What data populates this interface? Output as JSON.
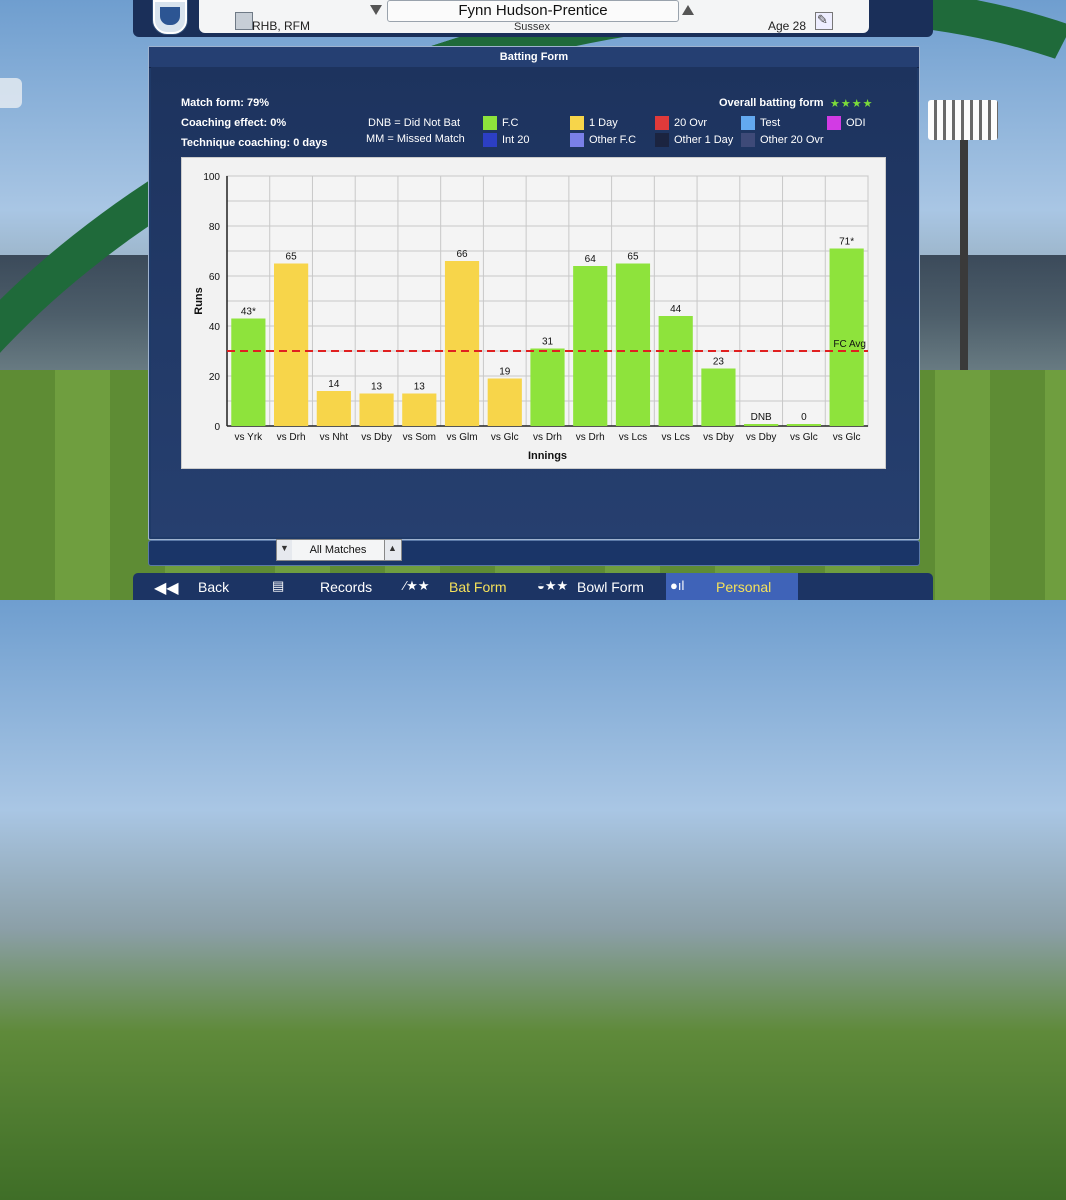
{
  "header": {
    "player_name": "Fynn Hudson-Prentice",
    "club": "Sussex",
    "role": "RHB, RFM",
    "age": "Age 28"
  },
  "panel": {
    "title": "Batting Form",
    "match_form": "Match form: 79%",
    "coaching_effect": "Coaching effect: 0%",
    "technique_coaching": "Technique coaching: 0 days",
    "overall_form_label": "Overall batting form",
    "overall_form_stars": "★★★★",
    "dnb_note": "DNB = Did Not Bat",
    "mm_note": "MM = Missed Match",
    "legend": [
      {
        "label": "F.C",
        "color": "#8ee33c"
      },
      {
        "label": "1 Day",
        "color": "#f7d54a"
      },
      {
        "label": "20 Ovr",
        "color": "#e03a3a"
      },
      {
        "label": "Test",
        "color": "#63a9f0"
      },
      {
        "label": "ODI",
        "color": "#d23be4"
      },
      {
        "label": "Int 20",
        "color": "#2c3fc4"
      },
      {
        "label": "Other F.C",
        "color": "#7a80e8"
      },
      {
        "label": "Other 1 Day",
        "color": "#1b2440"
      },
      {
        "label": "Other 20 Ovr",
        "color": "#3e4a78"
      }
    ]
  },
  "chart_data": {
    "type": "bar",
    "xlabel": "Innings",
    "ylabel": "Runs",
    "ylim": [
      0,
      100
    ],
    "yticks": [
      0,
      20,
      40,
      60,
      80,
      100
    ],
    "grid": true,
    "avg_line": {
      "label": "FC Avg",
      "value": 30,
      "color": "#e02020"
    },
    "categories": [
      "vs Yrk",
      "vs Drh",
      "vs Nht",
      "vs Dby",
      "vs Som",
      "vs Glm",
      "vs Glc",
      "vs Drh",
      "vs Drh",
      "vs Lcs",
      "vs Lcs",
      "vs Dby",
      "vs Dby",
      "vs Glc",
      "vs Glc"
    ],
    "values": [
      43,
      65,
      14,
      13,
      13,
      66,
      19,
      31,
      64,
      65,
      44,
      23,
      0,
      0,
      71
    ],
    "labels": [
      "43*",
      "65",
      "14",
      "13",
      "13",
      "66",
      "19",
      "31",
      "64",
      "65",
      "44",
      "23",
      "DNB",
      "0",
      "71*"
    ],
    "match_types": [
      "F.C",
      "1 Day",
      "1 Day",
      "1 Day",
      "1 Day",
      "1 Day",
      "1 Day",
      "F.C",
      "F.C",
      "F.C",
      "F.C",
      "F.C",
      "F.C",
      "F.C",
      "F.C"
    ]
  },
  "filter": {
    "label": "All Matches"
  },
  "nav": {
    "back": "Back",
    "records": "Records",
    "bat_form": "Bat Form",
    "bowl_form": "Bowl Form",
    "personal": "Personal"
  }
}
